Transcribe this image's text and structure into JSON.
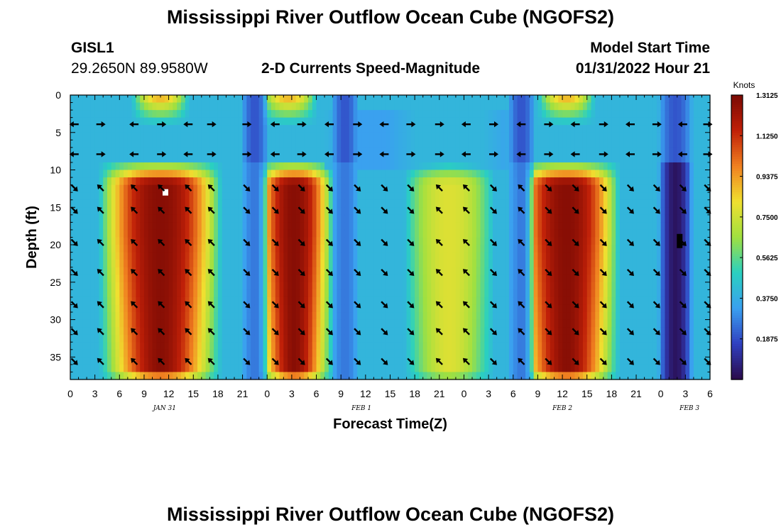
{
  "page_title": "Mississippi River Outflow Ocean Cube (NGOFS2)",
  "page_title_repeat": "Mississippi River Outflow Ocean Cube (NGOFS2)",
  "header": {
    "station": "GISL1",
    "coords": "29.2650N  89.9580W",
    "subtitle": "2-D Currents Speed-Magnitude",
    "model_start_label": "Model Start Time",
    "model_start_value": "01/31/2022 Hour 21"
  },
  "chart_data": {
    "type": "heatmap",
    "title": "2-D Currents Speed-Magnitude",
    "xlabel": "Forecast Time(Z)",
    "ylabel": "Depth (ft)",
    "x_range_hours": [
      0,
      78
    ],
    "ylim": [
      0,
      38
    ],
    "x_ticks": [
      {
        "h": 0,
        "label": "0"
      },
      {
        "h": 3,
        "label": "3"
      },
      {
        "h": 6,
        "label": "6"
      },
      {
        "h": 9,
        "label": "9"
      },
      {
        "h": 12,
        "label": "12"
      },
      {
        "h": 15,
        "label": "15"
      },
      {
        "h": 18,
        "label": "18"
      },
      {
        "h": 21,
        "label": "21"
      },
      {
        "h": 24,
        "label": "0"
      },
      {
        "h": 27,
        "label": "3"
      },
      {
        "h": 30,
        "label": "6"
      },
      {
        "h": 33,
        "label": "9"
      },
      {
        "h": 36,
        "label": "12"
      },
      {
        "h": 39,
        "label": "15"
      },
      {
        "h": 42,
        "label": "18"
      },
      {
        "h": 45,
        "label": "21"
      },
      {
        "h": 48,
        "label": "0"
      },
      {
        "h": 51,
        "label": "3"
      },
      {
        "h": 54,
        "label": "6"
      },
      {
        "h": 57,
        "label": "9"
      },
      {
        "h": 60,
        "label": "12"
      },
      {
        "h": 63,
        "label": "15"
      },
      {
        "h": 66,
        "label": "18"
      },
      {
        "h": 69,
        "label": "21"
      },
      {
        "h": 72,
        "label": "0"
      },
      {
        "h": 75,
        "label": "3"
      },
      {
        "h": 78,
        "label": "6"
      }
    ],
    "date_labels": [
      {
        "h": 11.5,
        "label": "JAN 31"
      },
      {
        "h": 35.5,
        "label": "FEB 1"
      },
      {
        "h": 60,
        "label": "FEB 2"
      },
      {
        "h": 75.5,
        "label": "FEB 3"
      }
    ],
    "y_ticks": [
      0,
      5,
      10,
      15,
      20,
      25,
      30,
      35
    ],
    "colorbar": {
      "title": "Knots",
      "min": 0,
      "max": 1.3125,
      "ticks": [
        "1.3125",
        "1.1250",
        "0.9375",
        "0.7500",
        "0.5625",
        "0.3750",
        "0.1875"
      ],
      "tick_values": [
        1.3125,
        1.125,
        0.9375,
        0.75,
        0.5625,
        0.375,
        0.1875
      ]
    },
    "colors": [
      "#2a0a4a",
      "#3040c0",
      "#3aa0f0",
      "#2ad0c0",
      "#a0e040",
      "#f0e030",
      "#f08020",
      "#c02008",
      "#7a0a04"
    ],
    "arrow_hours": [
      0.5,
      3.7,
      7.8,
      11.1,
      14.4,
      17.2,
      21.5,
      25.0,
      28.2,
      31.6,
      35.0,
      38.3,
      41.5,
      45.0,
      48.3,
      51.6,
      55.0,
      58.3,
      61.6,
      65.0,
      68.3,
      71.5,
      74.7,
      77.7
    ],
    "arrow_depths": [
      3.9,
      7.9,
      12.4,
      15.4,
      19.7,
      23.7,
      28.0,
      31.6,
      35.6
    ],
    "speed_profile": {
      "peaks": [
        {
          "center_h": 11.0,
          "half_width_h": 7.5,
          "speed_knots": 1.28
        },
        {
          "center_h": 27.3,
          "half_width_h": 4.8,
          "speed_knots": 1.28
        },
        {
          "center_h": 46.2,
          "half_width_h": 5.5,
          "speed_knots": 0.78
        },
        {
          "center_h": 60.5,
          "half_width_h": 6.5,
          "speed_knots": 1.28
        }
      ],
      "surface_highs_hours": [
        11.0,
        26.6,
        60.5
      ],
      "low_columns_hours": [
        22.5,
        33.5,
        55.0,
        73.8
      ]
    },
    "markers": [
      {
        "h": 11.6,
        "depth": 13.0,
        "color": "#ffffff"
      },
      {
        "h": 74.3,
        "depth": 19.5,
        "color": "#000000"
      }
    ]
  }
}
